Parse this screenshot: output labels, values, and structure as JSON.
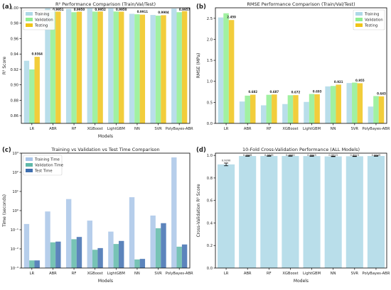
{
  "chart_data": [
    {
      "id": "a",
      "panel_label": "(a)",
      "type": "bar",
      "title": "R² Performance Comparison (Train/Val/Test)",
      "xlabel": "Models",
      "ylabel": "R² Score",
      "ylim": [
        0.85,
        1.0
      ],
      "yscale": "linear",
      "yticks": [
        "0.86",
        "0.88",
        "0.90",
        "0.92",
        "0.94",
        "0.96",
        "0.98",
        "1.00"
      ],
      "ytick_values": [
        0.86,
        0.88,
        0.9,
        0.92,
        0.94,
        0.96,
        0.98,
        1.0
      ],
      "categories": [
        "LR",
        "ABR",
        "RF",
        "XGBoost",
        "LightGBM",
        "NN",
        "SVR",
        "PolyBayes-ABR"
      ],
      "legend_position": "top-left",
      "series": [
        {
          "name": "Training",
          "color": "#add8e6",
          "values": [
            0.9313,
            0.9992,
            0.9985,
            0.9993,
            0.9993,
            0.9922,
            0.9907,
            0.999
          ]
        },
        {
          "name": "Validation",
          "color": "#90ee90",
          "values": [
            0.92,
            0.995,
            0.9943,
            0.9951,
            0.9952,
            0.9916,
            0.9898,
            0.9943
          ]
        },
        {
          "name": "Testing",
          "color": "#f0c419",
          "values": [
            0.9364,
            0.9951,
            0.995,
            0.9952,
            0.995,
            0.9911,
            0.9904,
            0.9957
          ]
        }
      ],
      "annotations": [
        "0.9364",
        "0.9951",
        "0.9950",
        "0.9952",
        "0.9950",
        "0.9911",
        "0.9904",
        "0.9957"
      ],
      "annotation_values": [
        0.9364,
        0.9951,
        0.995,
        0.9952,
        0.995,
        0.9911,
        0.9904,
        0.9957
      ],
      "grid": false
    },
    {
      "id": "b",
      "panel_label": "(b)",
      "type": "bar",
      "title": "RMSE Performance Comparison (Train/Val/Test)",
      "xlabel": "",
      "ylabel": "RMSE (MPa)",
      "ylim": [
        0,
        2.75
      ],
      "yscale": "linear",
      "yticks": [
        "0.0",
        "0.5",
        "1.0",
        "1.5",
        "2.0",
        "2.5"
      ],
      "ytick_values": [
        0,
        0.5,
        1.0,
        1.5,
        2.0,
        2.5
      ],
      "categories": [
        "LR",
        "ABR",
        "RF",
        "XGBoost",
        "LightGBM",
        "NN",
        "SVR",
        "PolyBayes-ABR"
      ],
      "legend_position": "top-right",
      "series": [
        {
          "name": "Training",
          "color": "#add8e6",
          "values": [
            2.52,
            0.52,
            0.43,
            0.46,
            0.51,
            0.88,
            0.96,
            0.4
          ]
        },
        {
          "name": "Validation",
          "color": "#90ee90",
          "values": [
            2.62,
            0.66,
            0.68,
            0.67,
            0.7,
            0.89,
            0.97,
            0.65
          ]
        },
        {
          "name": "Testing",
          "color": "#f0c419",
          "values": [
            2.459,
            0.682,
            0.687,
            0.672,
            0.693,
            0.921,
            0.955,
            0.643
          ]
        }
      ],
      "annotations": [
        "2.459",
        "0.682",
        "0.687",
        "0.672",
        "0.693",
        "0.921",
        "0.955",
        "0.643"
      ],
      "annotation_values": [
        2.459,
        0.682,
        0.687,
        0.672,
        0.693,
        0.921,
        0.955,
        0.643
      ],
      "grid": false
    },
    {
      "id": "c",
      "panel_label": "(c)",
      "type": "bar",
      "title": "Training vs Validation vs Test Time Comparison",
      "xlabel": "Models",
      "ylabel": "Time (seconds)",
      "ylim": [
        0.001,
        1000
      ],
      "yscale": "log",
      "yticks": [
        "10⁻³",
        "10⁻²",
        "10⁻¹",
        "10⁰",
        "10¹",
        "10²",
        "10³"
      ],
      "ytick_values": [
        0.001,
        0.01,
        0.1,
        1,
        10,
        100,
        1000
      ],
      "categories": [
        "LR",
        "ABR",
        "RF",
        "XGBoost",
        "LightGBM",
        "NN",
        "SVR",
        "PolyBayes-ABR"
      ],
      "legend_position": "top-left",
      "series": [
        {
          "name": "Training Time",
          "color": "#a9c5e8",
          "values": [
            0.2,
            0.9,
            4.0,
            0.3,
            0.08,
            5.0,
            0.55,
            600
          ]
        },
        {
          "name": "Validation Time",
          "color": "#5fb8a8",
          "values": [
            0.0025,
            0.022,
            0.032,
            0.009,
            0.018,
            0.0028,
            0.12,
            0.013
          ]
        },
        {
          "name": "Test Time",
          "color": "#3f6fb0",
          "values": [
            0.0025,
            0.024,
            0.042,
            0.011,
            0.026,
            0.003,
            0.22,
            0.017
          ]
        }
      ],
      "grid": false
    },
    {
      "id": "d",
      "panel_label": "(d)",
      "type": "bar",
      "title": "10-Fold Cross-Validation Performance (ALL Models)",
      "xlabel": "Models",
      "ylabel": "Cross-Validation R² Score",
      "ylim": [
        0,
        1.02
      ],
      "yscale": "linear",
      "yticks": [
        "0.0",
        "0.2",
        "0.4",
        "0.6",
        "0.8",
        "1.0"
      ],
      "ytick_values": [
        0,
        0.2,
        0.4,
        0.6,
        0.8,
        1.0
      ],
      "categories": [
        "LR",
        "ABR",
        "RF",
        "XGBoost",
        "LightGBM",
        "NN",
        "SVR",
        "PolyBayes-ABR"
      ],
      "series": [
        {
          "name": "",
          "color": "#add8e6",
          "values": [
            0.92,
            0.9946,
            0.9949,
            0.995,
            0.9943,
            0.9913,
            0.9923,
            0.9949
          ]
        }
      ],
      "annotations": [
        "0.9200",
        "0.9946",
        "0.9949",
        "0.9950",
        "0.9943",
        "0.9913",
        "0.9923",
        "0.9949"
      ],
      "error_bars": [
        0.012,
        0.002,
        0.002,
        0.002,
        0.002,
        0.002,
        0.002,
        0.002
      ],
      "grid": false
    }
  ]
}
